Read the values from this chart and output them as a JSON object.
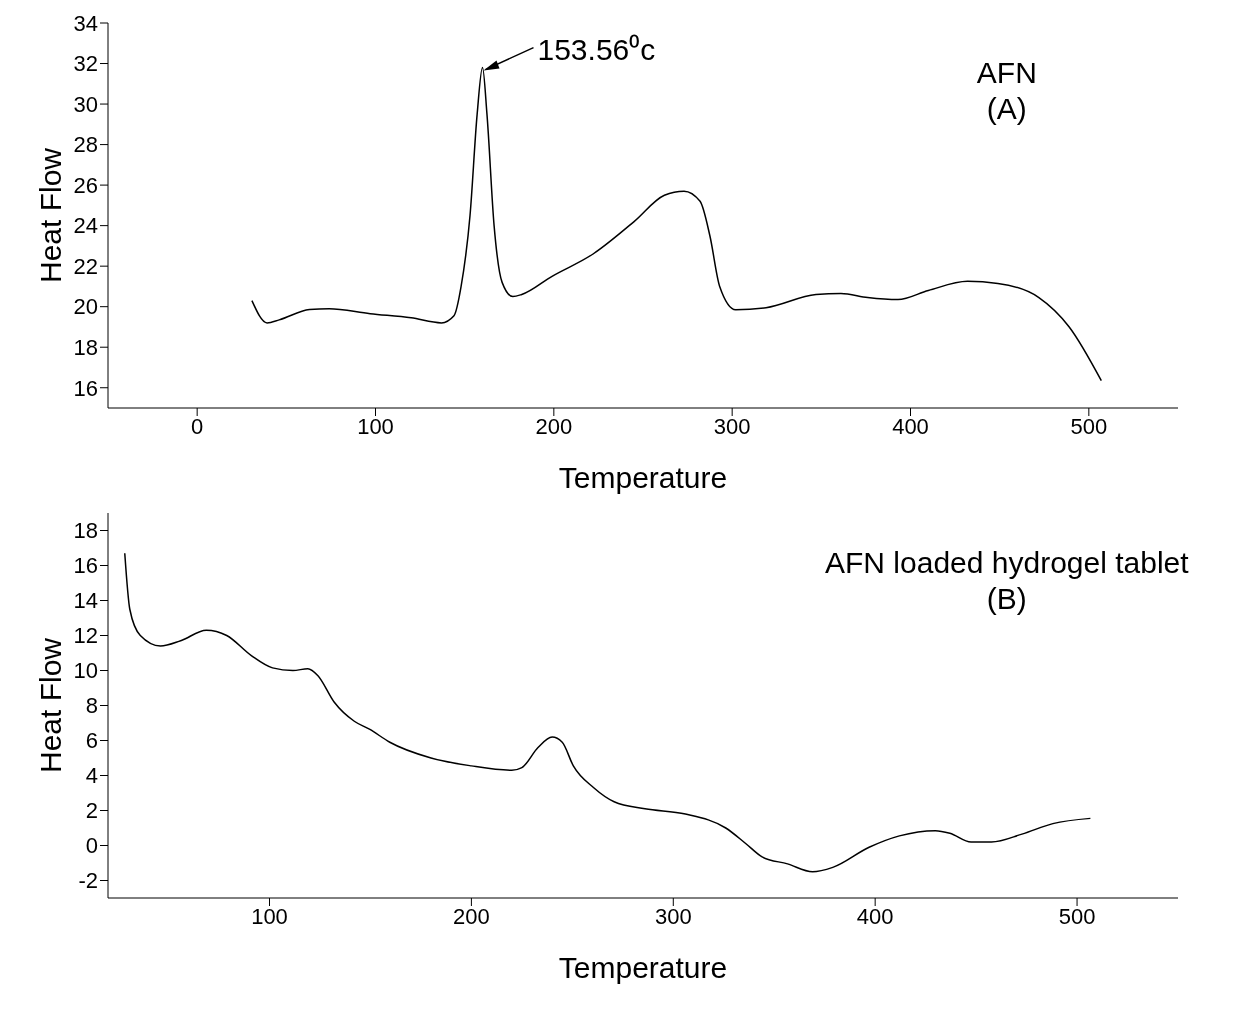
{
  "chart_data": [
    {
      "type": "line",
      "xlabel": "Temperature",
      "ylabel": "Heat Flow",
      "xlim": [
        -50,
        550
      ],
      "xticks": [
        0,
        100,
        200,
        300,
        400,
        500
      ],
      "ylim": [
        15,
        34
      ],
      "yticks": [
        16,
        18,
        20,
        22,
        24,
        26,
        28,
        30,
        32,
        34
      ],
      "grid": false,
      "legend": false,
      "marker": "none",
      "line_style": "solid",
      "annotations": [
        {
          "text": "153.56⁰c",
          "x": 160,
          "y": 31.8
        },
        "AFN\n(A)"
      ],
      "series": [
        {
          "color": "#000000",
          "x": [
            30.7,
            39.2,
            46,
            63,
            74,
            97,
            120,
            137,
            144,
            148,
            153,
            157,
            160,
            162.5,
            166.5,
            171,
            177,
            182,
            199,
            222,
            245,
            262,
            273,
            282,
            287.5,
            293,
            302,
            319,
            347,
            361,
            376,
            393,
            410,
            432,
            449,
            472,
            489,
            507
          ],
          "values": [
            20.3,
            19.2,
            19.35,
            19.86,
            19.9,
            19.65,
            19.45,
            19.2,
            19.55,
            21,
            24.5,
            29.5,
            31.8,
            29.5,
            24,
            21.2,
            20.5,
            20.6,
            21.5,
            22.6,
            24.2,
            25.5,
            25.7,
            25.2,
            23.5,
            21,
            19.85,
            19.95,
            20.6,
            20.65,
            20.45,
            20.35,
            20.8,
            21.25,
            21.15,
            20.45,
            19,
            16.35
          ]
        }
      ]
    },
    {
      "type": "line",
      "xlabel": "Temperature",
      "ylabel": "Heat Flow",
      "xlim": [
        20,
        550
      ],
      "xticks": [
        100,
        200,
        300,
        400,
        500
      ],
      "ylim": [
        -3,
        19
      ],
      "yticks": [
        -2,
        0,
        2,
        4,
        6,
        8,
        10,
        12,
        14,
        16,
        18
      ],
      "grid": false,
      "legend": false,
      "marker": "none",
      "line_style": "solid",
      "annotations": [
        "AFN loaded hydrogel tablet\n(B)"
      ],
      "series": [
        {
          "color": "#000000",
          "x": [
            28.3,
            30.8,
            36,
            46,
            56,
            68.7,
            78.8,
            91,
            101.5,
            111.6,
            119,
            124,
            132,
            142,
            149.5,
            159.6,
            180,
            200,
            220,
            225,
            233,
            240,
            245,
            250.5,
            260.6,
            270.7,
            286,
            306,
            326,
            336,
            344,
            356.6,
            369,
            379,
            397,
            412,
            429.8,
            437,
            447.5,
            457.6,
            472.7,
            488,
            506.6
          ],
          "values": [
            16.7,
            13.5,
            12,
            11.4,
            11.7,
            12.3,
            12,
            10.85,
            10.15,
            10,
            10.1,
            9.7,
            8.2,
            7.1,
            6.65,
            5.9,
            5,
            4.55,
            4.3,
            4.45,
            5.6,
            6.2,
            5.9,
            4.55,
            3.3,
            2.5,
            2.1,
            1.8,
            1,
            0.1,
            -0.65,
            -1.05,
            -1.5,
            -1.25,
            -0.1,
            0.55,
            0.85,
            0.7,
            0.2,
            0.2,
            0.65,
            1.25,
            1.55
          ]
        }
      ]
    }
  ]
}
